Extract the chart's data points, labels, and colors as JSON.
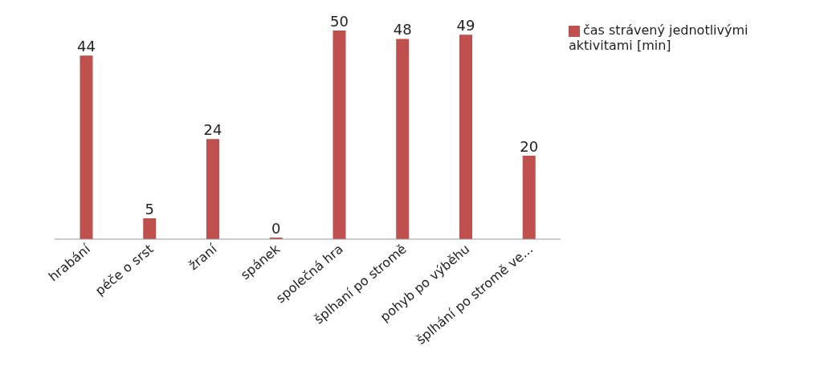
{
  "chart_data": {
    "type": "bar",
    "categories": [
      "hrabání",
      "péče o srst",
      "žraní",
      "spánek",
      "společná hra",
      "šplhaní po stromě",
      "pohyb po výběhu",
      "šplhání po stromě ve..."
    ],
    "series": [
      {
        "name": "čas strávený jednotlivými aktivitami [min]",
        "color": "#c0504d",
        "values": [
          44,
          5,
          24,
          0,
          50,
          48,
          49,
          20
        ]
      }
    ],
    "data_labels": true,
    "legend": "top right"
  }
}
